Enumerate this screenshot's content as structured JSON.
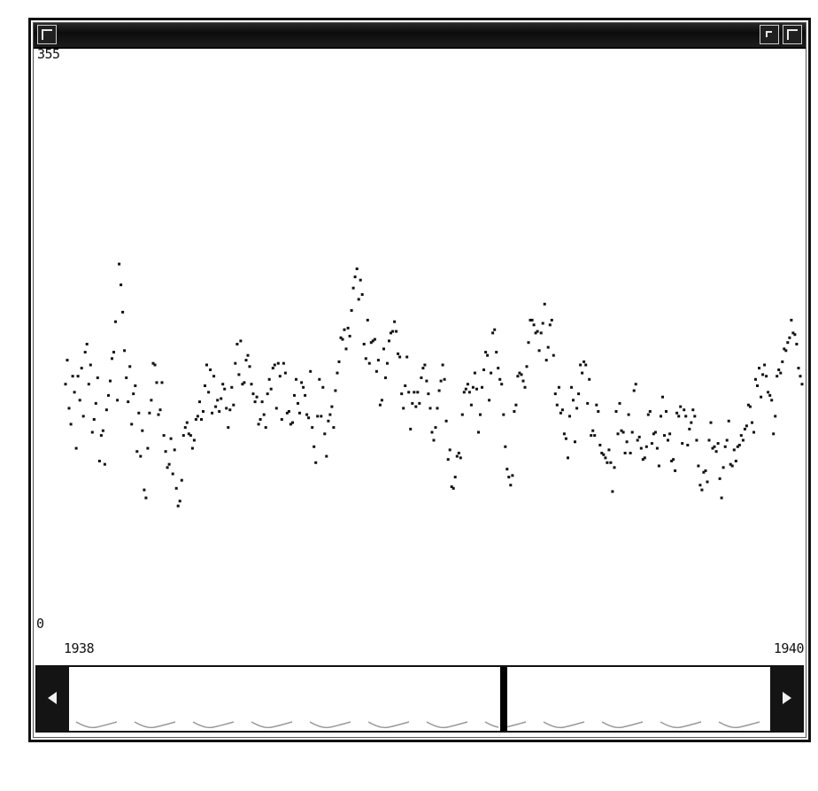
{
  "window": {
    "buttons": {
      "menu": "window-menu-icon",
      "iconify": "iconify-icon",
      "maximize": "maximize-icon"
    }
  },
  "chart_data": {
    "type": "scatter",
    "title": "",
    "y_axis": {
      "min_label": "0",
      "max_label": "355",
      "ylim": [
        0,
        355
      ]
    },
    "x_axis": {
      "start_label": "1938",
      "end_label": "1940"
    },
    "grid": false,
    "marker_color": "#111111",
    "y_values": [
      150,
      165,
      135,
      125,
      155,
      145,
      110,
      155,
      140,
      160,
      130,
      170,
      175,
      150,
      162,
      120,
      128,
      138,
      154,
      102,
      118,
      121,
      100,
      134,
      143,
      152,
      166,
      170,
      189,
      140,
      225,
      212,
      195,
      171,
      154,
      139,
      161,
      125,
      144,
      149,
      108,
      132,
      105,
      121,
      84,
      79,
      110,
      132,
      140,
      163,
      162,
      151,
      131,
      134,
      151,
      118,
      108,
      98,
      100,
      116,
      94,
      109,
      85,
      74,
      77,
      90,
      118,
      123,
      126,
      119,
      118,
      110,
      115,
      128,
      130,
      139,
      128,
      133,
      149,
      162,
      145,
      159,
      132,
      155,
      136,
      140,
      133,
      141,
      150,
      147,
      135,
      123,
      134,
      148,
      137,
      163,
      175,
      156,
      177,
      150,
      151,
      165,
      168,
      161,
      150,
      144,
      139,
      142,
      125,
      128,
      139,
      131,
      123,
      144,
      153,
      147,
      160,
      162,
      135,
      163,
      155,
      128,
      163,
      157,
      132,
      133,
      125,
      126,
      143,
      153,
      138,
      132,
      151,
      148,
      143,
      131,
      129,
      158,
      123,
      111,
      101,
      130,
      153,
      130,
      148,
      119,
      105,
      127,
      131,
      136,
      123,
      146,
      157,
      164,
      179,
      178,
      184,
      172,
      185,
      180,
      196,
      210,
      217,
      222,
      203,
      215,
      206,
      175,
      166,
      190,
      163,
      176,
      177,
      178,
      158,
      165,
      137,
      140,
      172,
      154,
      163,
      177,
      182,
      183,
      189,
      183,
      169,
      167,
      144,
      135,
      149,
      167,
      145,
      122,
      138,
      145,
      136,
      145,
      138,
      154,
      160,
      162,
      152,
      144,
      135,
      120,
      115,
      123,
      135,
      146,
      152,
      162,
      153,
      127,
      103,
      109,
      86,
      85,
      92,
      105,
      107,
      104,
      131,
      145,
      147,
      150,
      145,
      137,
      148,
      157,
      147,
      120,
      131,
      148,
      159,
      170,
      168,
      140,
      157,
      182,
      184,
      170,
      160,
      153,
      150,
      131,
      111,
      97,
      92,
      87,
      93,
      133,
      137,
      155,
      157,
      156,
      152,
      148,
      161,
      176,
      190,
      190,
      187,
      182,
      183,
      171,
      182,
      188,
      200,
      165,
      173,
      187,
      190,
      168,
      144,
      137,
      148,
      132,
      134,
      119,
      116,
      104,
      130,
      148,
      140,
      114,
      135,
      144,
      162,
      157,
      164,
      162,
      138,
      153,
      118,
      121,
      118,
      137,
      133,
      112,
      107,
      106,
      104,
      101,
      109,
      101,
      83,
      98,
      133,
      119,
      138,
      121,
      120,
      107,
      114,
      131,
      107,
      120,
      146,
      150,
      115,
      117,
      110,
      103,
      104,
      111,
      131,
      133,
      113,
      119,
      120,
      110,
      99,
      130,
      142,
      118,
      133,
      115,
      119,
      102,
      103,
      96,
      132,
      130,
      136,
      113,
      134,
      130,
      112,
      122,
      126,
      134,
      130,
      115,
      99,
      87,
      84,
      95,
      96,
      89,
      115,
      126,
      110,
      111,
      108,
      113,
      91,
      79,
      98,
      111,
      115,
      127,
      100,
      99,
      109,
      102,
      111,
      112,
      118,
      115,
      122,
      124,
      137,
      136,
      126,
      120,
      153,
      149,
      160,
      142,
      156,
      162,
      155,
      145,
      143,
      140,
      119,
      130,
      155,
      159,
      157,
      164,
      172,
      171,
      176,
      179,
      190,
      182,
      181,
      175,
      160,
      155,
      150
    ]
  }
}
